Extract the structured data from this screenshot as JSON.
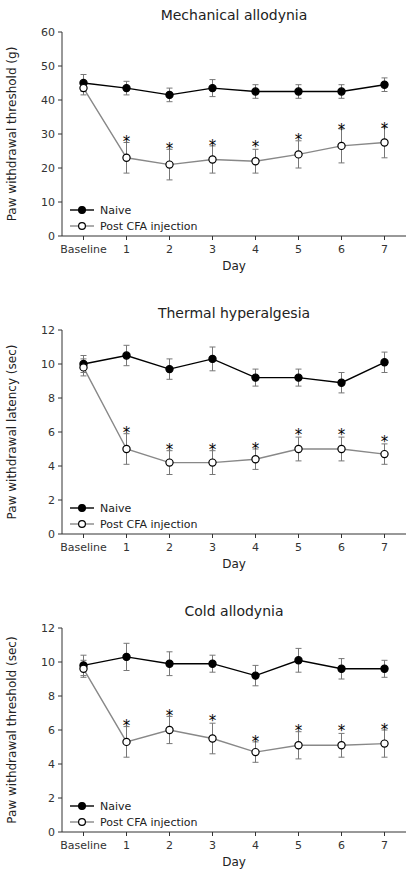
{
  "chart_data": [
    {
      "type": "line",
      "title": "Mechanical allodynia",
      "x_label": "Day",
      "y_label": "Paw withdrawal threshold (g)",
      "categories": [
        "Baseline",
        "1",
        "2",
        "3",
        "4",
        "5",
        "6",
        "7"
      ],
      "ylim": [
        0,
        60
      ],
      "yticks": [
        0,
        10,
        20,
        30,
        40,
        50,
        60
      ],
      "grid": false,
      "legend": "lower left",
      "series": [
        {
          "name": "Naive",
          "color": "#000000",
          "marker": "circle",
          "values": [
            45.0,
            43.5,
            41.5,
            43.5,
            42.5,
            42.5,
            42.5,
            44.5
          ],
          "errors": [
            2.5,
            2.0,
            2.0,
            2.5,
            2.0,
            2.0,
            2.0,
            2.0
          ]
        },
        {
          "name": "Post CFA injection",
          "color": "#888888",
          "marker": "open-circle",
          "values": [
            43.5,
            23.0,
            21.0,
            22.5,
            22.0,
            24.0,
            26.5,
            27.5
          ],
          "errors": [
            2.0,
            4.5,
            4.5,
            4.0,
            3.5,
            4.0,
            5.0,
            4.5
          ]
        }
      ],
      "annotations": [
        {
          "text": "*",
          "x": "1",
          "y": 28.5
        },
        {
          "text": "*",
          "x": "2",
          "y": 26.5
        },
        {
          "text": "*",
          "x": "3",
          "y": 27.5
        },
        {
          "text": "*",
          "x": "4",
          "y": 27.0
        },
        {
          "text": "*",
          "x": "5",
          "y": 29.0
        },
        {
          "text": "*",
          "x": "6",
          "y": 32.0
        },
        {
          "text": "*",
          "x": "7",
          "y": 32.5
        }
      ]
    },
    {
      "type": "line",
      "title": "Thermal hyperalgesia",
      "x_label": "Day",
      "y_label": "Paw withdrawal latency (sec)",
      "categories": [
        "Baseline",
        "1",
        "2",
        "3",
        "4",
        "5",
        "6",
        "7"
      ],
      "ylim": [
        0,
        12
      ],
      "yticks": [
        0,
        2,
        4,
        6,
        8,
        10,
        12
      ],
      "grid": false,
      "legend": "lower left",
      "series": [
        {
          "name": "Naive",
          "color": "#000000",
          "marker": "circle",
          "values": [
            10.0,
            10.5,
            9.7,
            10.3,
            9.2,
            9.2,
            8.9,
            10.1
          ],
          "errors": [
            0.5,
            0.6,
            0.6,
            0.7,
            0.5,
            0.5,
            0.6,
            0.6
          ]
        },
        {
          "name": "Post CFA injection",
          "color": "#888888",
          "marker": "open-circle",
          "values": [
            9.8,
            5.0,
            4.2,
            4.2,
            4.4,
            5.0,
            5.0,
            4.7
          ],
          "errors": [
            0.5,
            0.9,
            0.7,
            0.7,
            0.6,
            0.7,
            0.7,
            0.6
          ]
        }
      ],
      "annotations": [
        {
          "text": "*",
          "x": "1",
          "y": 6.1
        },
        {
          "text": "*",
          "x": "2",
          "y": 5.1
        },
        {
          "text": "*",
          "x": "3",
          "y": 5.1
        },
        {
          "text": "*",
          "x": "4",
          "y": 5.2
        },
        {
          "text": "*",
          "x": "5",
          "y": 6.0
        },
        {
          "text": "*",
          "x": "6",
          "y": 6.0
        },
        {
          "text": "*",
          "x": "7",
          "y": 5.6
        }
      ]
    },
    {
      "type": "line",
      "title": "Cold allodynia",
      "x_label": "Day",
      "y_label": "Paw withdrawal threshold (sec)",
      "categories": [
        "Baseline",
        "1",
        "2",
        "3",
        "4",
        "5",
        "6",
        "7"
      ],
      "ylim": [
        0,
        12
      ],
      "yticks": [
        0,
        2,
        4,
        6,
        8,
        10,
        12
      ],
      "grid": false,
      "legend": "lower left",
      "series": [
        {
          "name": "Naive",
          "color": "#000000",
          "marker": "circle",
          "values": [
            9.8,
            10.3,
            9.9,
            9.9,
            9.2,
            10.1,
            9.6,
            9.6
          ],
          "errors": [
            0.6,
            0.8,
            0.7,
            0.5,
            0.6,
            0.7,
            0.6,
            0.5
          ]
        },
        {
          "name": "Post CFA injection",
          "color": "#888888",
          "marker": "open-circle",
          "values": [
            9.6,
            5.3,
            6.0,
            5.5,
            4.7,
            5.1,
            5.1,
            5.2
          ],
          "errors": [
            0.5,
            0.9,
            0.8,
            0.9,
            0.6,
            0.8,
            0.7,
            0.8
          ]
        }
      ],
      "annotations": [
        {
          "text": "*",
          "x": "1",
          "y": 6.4
        },
        {
          "text": "*",
          "x": "2",
          "y": 7.0
        },
        {
          "text": "*",
          "x": "3",
          "y": 6.7
        },
        {
          "text": "*",
          "x": "4",
          "y": 5.5
        },
        {
          "text": "*",
          "x": "5",
          "y": 6.1
        },
        {
          "text": "*",
          "x": "6",
          "y": 6.1
        },
        {
          "text": "*",
          "x": "7",
          "y": 6.2
        }
      ]
    }
  ]
}
